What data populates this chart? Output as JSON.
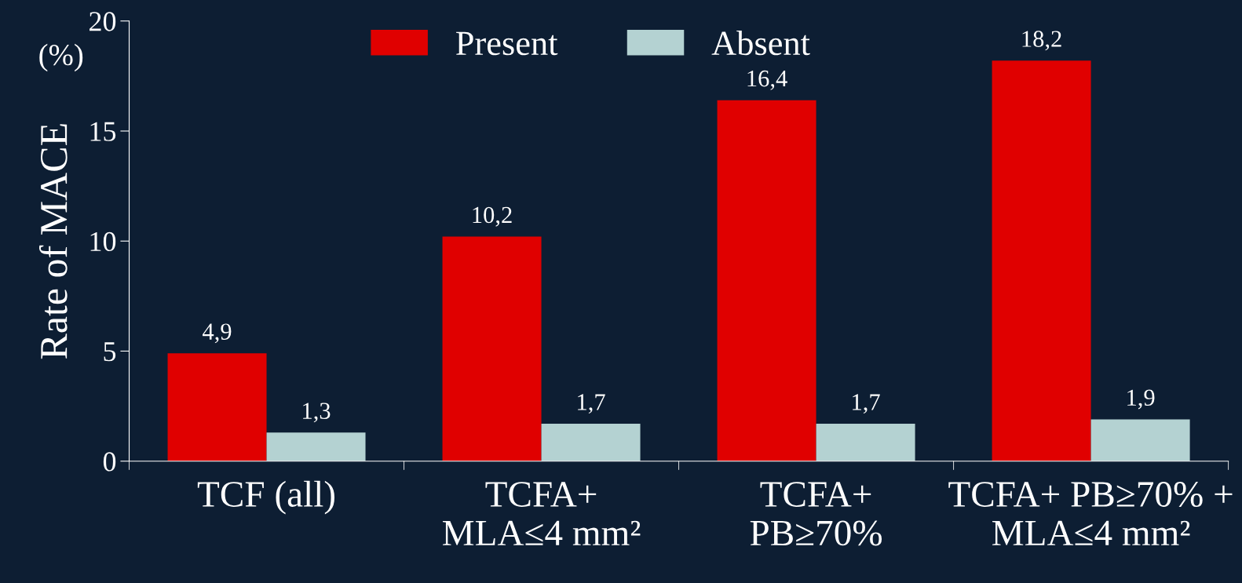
{
  "chart_data": {
    "type": "bar",
    "categories": [
      "TCF (all)",
      "TCFA+\nMLA≤4 mm²",
      "TCFA+\nPB≥70%",
      "TCFA+ PB≥70% +\nMLA≤4 mm²"
    ],
    "series": [
      {
        "name": "Present",
        "color": "#e00000",
        "values": [
          4.9,
          10.2,
          16.4,
          18.2
        ],
        "value_labels": [
          "4,9",
          "10,2",
          "16,4",
          "18,2"
        ]
      },
      {
        "name": "Absent",
        "color": "#b4d2d2",
        "values": [
          1.3,
          1.7,
          1.7,
          1.9
        ],
        "value_labels": [
          "1,3",
          "1,7",
          "1,7",
          "1,9"
        ]
      }
    ],
    "ylabel": "Rate of MACE",
    "annotations": [
      "(%)"
    ],
    "ylim": [
      0,
      20
    ],
    "yticks": [
      0,
      5,
      10,
      15,
      20
    ],
    "grid": false,
    "legend": "top"
  }
}
